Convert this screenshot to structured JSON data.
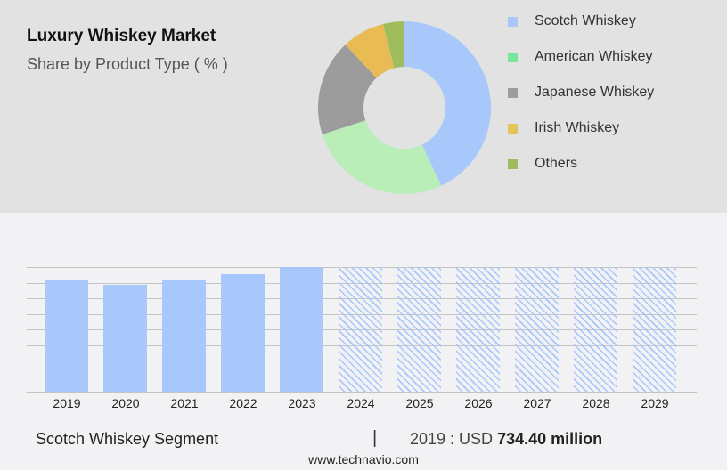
{
  "header": {
    "title": "Luxury Whiskey Market",
    "subtitle": "Share by Product Type ( % )"
  },
  "legend": [
    {
      "label": "Scotch Whiskey",
      "color": "#a8c8fb"
    },
    {
      "label": "American Whiskey",
      "color": "#79e49c"
    },
    {
      "label": "Japanese Whiskey",
      "color": "#9c9c9c"
    },
    {
      "label": "Irish Whiskey",
      "color": "#e2c45a"
    },
    {
      "label": "Others",
      "color": "#a0bd5e"
    }
  ],
  "footer": {
    "segment": "Scotch Whiskey Segment",
    "separator": "|",
    "value_prefix": "2019 : USD",
    "value": "734.40 million",
    "url": "www.technavio.com"
  },
  "chart_data": [
    {
      "type": "pie",
      "title": "Share by Product Type ( % )",
      "donut": true,
      "categories": [
        "Scotch Whiskey",
        "American Whiskey",
        "Japanese Whiskey",
        "Irish Whiskey",
        "Others"
      ],
      "values": [
        43,
        27,
        18,
        8,
        4
      ],
      "colors": [
        "#a8c8fb",
        "#b9eeb9",
        "#9c9c9c",
        "#e8bb55",
        "#a0bd5e"
      ],
      "legend_position": "right"
    },
    {
      "type": "bar",
      "title": "Scotch Whiskey Segment",
      "categories": [
        "2019",
        "2020",
        "2021",
        "2022",
        "2023",
        "2024",
        "2025",
        "2026",
        "2027",
        "2028",
        "2029"
      ],
      "values": [
        126,
        120,
        126,
        132,
        140,
        140,
        140,
        140,
        140,
        140,
        140
      ],
      "forecast_from": "2024",
      "annotation": "2019 : USD 734.40 million",
      "ylim": [
        0,
        140
      ],
      "grid": true,
      "yticks_visible": false,
      "color": "#a8c8fb"
    }
  ]
}
